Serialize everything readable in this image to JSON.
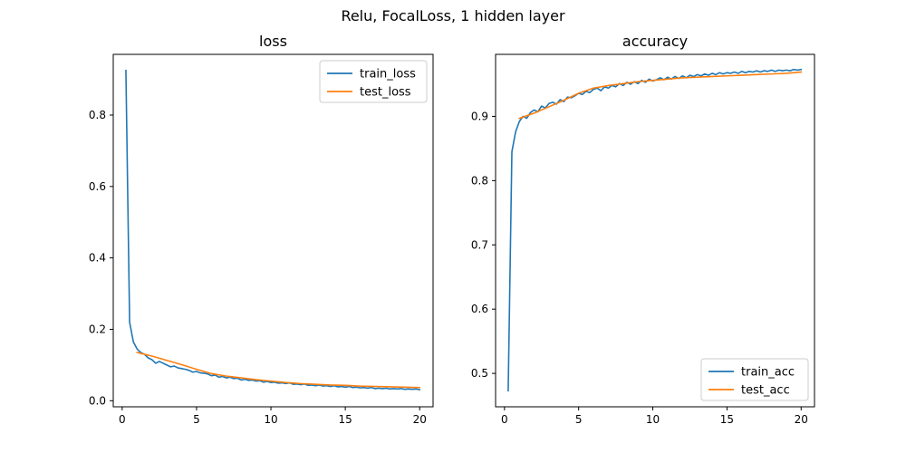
{
  "figure": {
    "suptitle": "Relu, FocalLoss, 1 hidden layer"
  },
  "colors": {
    "train": "#1f77b4",
    "test": "#ff7f0e"
  },
  "chart_data": [
    {
      "type": "line",
      "title": "loss",
      "xlabel": "",
      "ylabel": "",
      "xlim": [
        -0.6,
        20.9
      ],
      "ylim": [
        -0.017,
        0.97
      ],
      "xticks": [
        0,
        5,
        10,
        15,
        20
      ],
      "yticks": [
        0.0,
        0.2,
        0.4,
        0.6,
        0.8
      ],
      "xtick_labels": [
        "0",
        "5",
        "10",
        "15",
        "20"
      ],
      "ytick_labels": [
        "0.0",
        "0.2",
        "0.4",
        "0.6",
        "0.8"
      ],
      "grid": false,
      "legend": "upper right",
      "series": [
        {
          "name": "train_loss",
          "x": [
            0.25,
            0.5,
            0.75,
            1.0,
            1.25,
            1.5,
            1.75,
            2.0,
            2.25,
            2.5,
            2.75,
            3.0,
            3.25,
            3.5,
            3.75,
            4.0,
            4.25,
            4.5,
            4.75,
            5.0,
            5.25,
            5.5,
            5.75,
            6.0,
            6.25,
            6.5,
            6.75,
            7.0,
            7.25,
            7.5,
            7.75,
            8.0,
            8.25,
            8.5,
            8.75,
            9.0,
            9.25,
            9.5,
            9.75,
            10.0,
            10.25,
            10.5,
            10.75,
            11.0,
            11.25,
            11.5,
            11.75,
            12.0,
            12.25,
            12.5,
            12.75,
            13.0,
            13.25,
            13.5,
            13.75,
            14.0,
            14.25,
            14.5,
            14.75,
            15.0,
            15.25,
            15.5,
            15.75,
            16.0,
            16.25,
            16.5,
            16.75,
            17.0,
            17.25,
            17.5,
            17.75,
            18.0,
            18.25,
            18.5,
            18.75,
            19.0,
            19.25,
            19.5,
            19.75,
            20.0
          ],
          "y": [
            0.925,
            0.22,
            0.165,
            0.145,
            0.135,
            0.13,
            0.12,
            0.115,
            0.105,
            0.11,
            0.105,
            0.1,
            0.095,
            0.097,
            0.092,
            0.09,
            0.088,
            0.085,
            0.08,
            0.082,
            0.078,
            0.077,
            0.075,
            0.07,
            0.072,
            0.066,
            0.068,
            0.064,
            0.066,
            0.062,
            0.063,
            0.058,
            0.06,
            0.057,
            0.058,
            0.055,
            0.056,
            0.052,
            0.054,
            0.051,
            0.052,
            0.049,
            0.05,
            0.048,
            0.05,
            0.046,
            0.047,
            0.045,
            0.047,
            0.043,
            0.044,
            0.042,
            0.044,
            0.041,
            0.042,
            0.04,
            0.042,
            0.039,
            0.04,
            0.038,
            0.04,
            0.037,
            0.038,
            0.036,
            0.037,
            0.035,
            0.037,
            0.034,
            0.035,
            0.034,
            0.035,
            0.033,
            0.034,
            0.033,
            0.034,
            0.032,
            0.033,
            0.032,
            0.033,
            0.031
          ]
        },
        {
          "name": "test_loss",
          "x": [
            1,
            2,
            3,
            4,
            5,
            6,
            7,
            8,
            9,
            10,
            11,
            12,
            13,
            14,
            15,
            16,
            17,
            18,
            19,
            20
          ],
          "y": [
            0.135,
            0.125,
            0.113,
            0.101,
            0.088,
            0.076,
            0.069,
            0.064,
            0.059,
            0.055,
            0.051,
            0.048,
            0.046,
            0.044,
            0.043,
            0.041,
            0.04,
            0.039,
            0.038,
            0.037
          ]
        }
      ]
    },
    {
      "type": "line",
      "title": "accuracy",
      "xlabel": "",
      "ylabel": "",
      "xlim": [
        -0.6,
        20.9
      ],
      "ylim": [
        0.448,
        0.9965
      ],
      "xticks": [
        0,
        5,
        10,
        15,
        20
      ],
      "yticks": [
        0.5,
        0.6,
        0.7,
        0.8,
        0.9
      ],
      "xtick_labels": [
        "0",
        "5",
        "10",
        "15",
        "20"
      ],
      "ytick_labels": [
        "0.5",
        "0.6",
        "0.7",
        "0.8",
        "0.9"
      ],
      "grid": false,
      "legend": "lower right",
      "series": [
        {
          "name": "train_acc",
          "x": [
            0.25,
            0.5,
            0.75,
            1.0,
            1.25,
            1.5,
            1.75,
            2.0,
            2.25,
            2.5,
            2.75,
            3.0,
            3.25,
            3.5,
            3.75,
            4.0,
            4.25,
            4.5,
            4.75,
            5.0,
            5.25,
            5.5,
            5.75,
            6.0,
            6.25,
            6.5,
            6.75,
            7.0,
            7.25,
            7.5,
            7.75,
            8.0,
            8.25,
            8.5,
            8.75,
            9.0,
            9.25,
            9.5,
            9.75,
            10.0,
            10.25,
            10.5,
            10.75,
            11.0,
            11.25,
            11.5,
            11.75,
            12.0,
            12.25,
            12.5,
            12.75,
            13.0,
            13.25,
            13.5,
            13.75,
            14.0,
            14.25,
            14.5,
            14.75,
            15.0,
            15.25,
            15.5,
            15.75,
            16.0,
            16.25,
            16.5,
            16.75,
            17.0,
            17.25,
            17.5,
            17.75,
            18.0,
            18.25,
            18.5,
            18.75,
            19.0,
            19.25,
            19.5,
            19.75,
            20.0
          ],
          "y": [
            0.473,
            0.845,
            0.876,
            0.892,
            0.9,
            0.897,
            0.906,
            0.91,
            0.907,
            0.916,
            0.913,
            0.92,
            0.922,
            0.919,
            0.926,
            0.923,
            0.93,
            0.929,
            0.932,
            0.936,
            0.934,
            0.939,
            0.937,
            0.942,
            0.944,
            0.94,
            0.946,
            0.944,
            0.948,
            0.946,
            0.951,
            0.948,
            0.953,
            0.95,
            0.954,
            0.951,
            0.956,
            0.953,
            0.958,
            0.955,
            0.957,
            0.96,
            0.957,
            0.961,
            0.958,
            0.962,
            0.959,
            0.963,
            0.96,
            0.964,
            0.962,
            0.965,
            0.963,
            0.966,
            0.964,
            0.967,
            0.965,
            0.968,
            0.966,
            0.968,
            0.967,
            0.969,
            0.967,
            0.97,
            0.968,
            0.97,
            0.969,
            0.971,
            0.969,
            0.971,
            0.97,
            0.972,
            0.97,
            0.972,
            0.971,
            0.972,
            0.971,
            0.973,
            0.972,
            0.973
          ]
        },
        {
          "name": "test_acc",
          "x": [
            1,
            2,
            3,
            4,
            5,
            6,
            7,
            8,
            9,
            10,
            11,
            12,
            13,
            14,
            15,
            16,
            17,
            18,
            19,
            20
          ],
          "y": [
            0.897,
            0.905,
            0.915,
            0.925,
            0.936,
            0.944,
            0.948,
            0.951,
            0.954,
            0.956,
            0.958,
            0.96,
            0.961,
            0.962,
            0.963,
            0.964,
            0.965,
            0.966,
            0.967,
            0.969
          ]
        }
      ]
    }
  ]
}
